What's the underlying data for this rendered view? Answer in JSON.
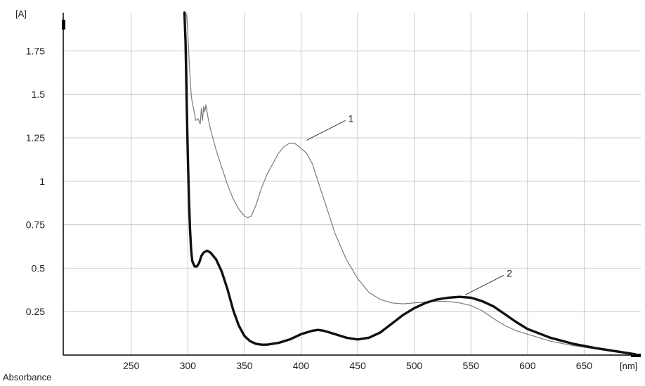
{
  "chart_data": {
    "type": "line",
    "xlabel": "[nm]",
    "ylabel": "[A]",
    "caption": "Absorbance",
    "xlim": [
      190,
      700
    ],
    "ylim": [
      0,
      1.97
    ],
    "x_ticks": [
      250,
      300,
      350,
      400,
      450,
      500,
      550,
      600,
      650
    ],
    "y_ticks": [
      0.25,
      0.5,
      0.75,
      1,
      1.25,
      1.5,
      1.75
    ],
    "x_tick_labels": [
      "250",
      "300",
      "350",
      "400",
      "450",
      "500",
      "550",
      "600",
      "650"
    ],
    "y_tick_labels": [
      "0.25",
      "0.5",
      "0.75",
      "1",
      "1.25",
      "1.5",
      "1.75"
    ],
    "grid": true,
    "colors": {
      "series_1": "#7a7a7a",
      "series_2": "#111111",
      "grid": "#c8c8c8",
      "axis": "#000000"
    },
    "series": [
      {
        "name": "1",
        "x": [
          298,
          299,
          300,
          301,
          302,
          303,
          304,
          305,
          307,
          309,
          311,
          312,
          313,
          314,
          315,
          316,
          318,
          320,
          325,
          330,
          335,
          340,
          345,
          350,
          353,
          356,
          360,
          365,
          370,
          375,
          380,
          385,
          390,
          395,
          397,
          400,
          405,
          410,
          415,
          420,
          425,
          430,
          440,
          450,
          460,
          470,
          480,
          490,
          500,
          510,
          520,
          530,
          540,
          550,
          560,
          570,
          580,
          590,
          600,
          620,
          640,
          660,
          680,
          695
        ],
        "y": [
          2.0,
          1.95,
          1.85,
          1.72,
          1.6,
          1.5,
          1.45,
          1.42,
          1.35,
          1.36,
          1.33,
          1.42,
          1.35,
          1.43,
          1.4,
          1.44,
          1.36,
          1.3,
          1.18,
          1.08,
          0.98,
          0.9,
          0.84,
          0.8,
          0.79,
          0.8,
          0.86,
          0.96,
          1.04,
          1.1,
          1.16,
          1.2,
          1.22,
          1.215,
          1.205,
          1.19,
          1.16,
          1.1,
          1.0,
          0.9,
          0.8,
          0.7,
          0.55,
          0.44,
          0.36,
          0.32,
          0.3,
          0.295,
          0.3,
          0.305,
          0.31,
          0.308,
          0.3,
          0.285,
          0.255,
          0.21,
          0.17,
          0.14,
          0.12,
          0.08,
          0.055,
          0.035,
          0.015,
          0.005
        ]
      },
      {
        "name": "2",
        "x": [
          297,
          298,
          299,
          300,
          301,
          302,
          303,
          304,
          306,
          308,
          310,
          312,
          314,
          317,
          320,
          325,
          330,
          335,
          340,
          345,
          350,
          355,
          360,
          365,
          370,
          380,
          390,
          400,
          410,
          415,
          420,
          430,
          440,
          450,
          460,
          470,
          480,
          490,
          500,
          510,
          520,
          530,
          540,
          550,
          560,
          570,
          580,
          590,
          600,
          620,
          640,
          660,
          680,
          695
        ],
        "y": [
          2.0,
          1.8,
          1.45,
          1.15,
          0.9,
          0.72,
          0.6,
          0.54,
          0.51,
          0.51,
          0.53,
          0.57,
          0.59,
          0.6,
          0.59,
          0.55,
          0.48,
          0.38,
          0.26,
          0.17,
          0.11,
          0.08,
          0.065,
          0.06,
          0.06,
          0.07,
          0.09,
          0.12,
          0.14,
          0.145,
          0.14,
          0.12,
          0.1,
          0.09,
          0.1,
          0.13,
          0.18,
          0.23,
          0.27,
          0.3,
          0.32,
          0.33,
          0.335,
          0.33,
          0.31,
          0.28,
          0.235,
          0.19,
          0.15,
          0.1,
          0.065,
          0.04,
          0.02,
          0.005
        ]
      }
    ],
    "annotations": [
      {
        "label": "1",
        "series": 0,
        "x": 400,
        "y": 1.22
      },
      {
        "label": "2",
        "series": 1,
        "x": 540,
        "y": 0.33
      }
    ]
  }
}
